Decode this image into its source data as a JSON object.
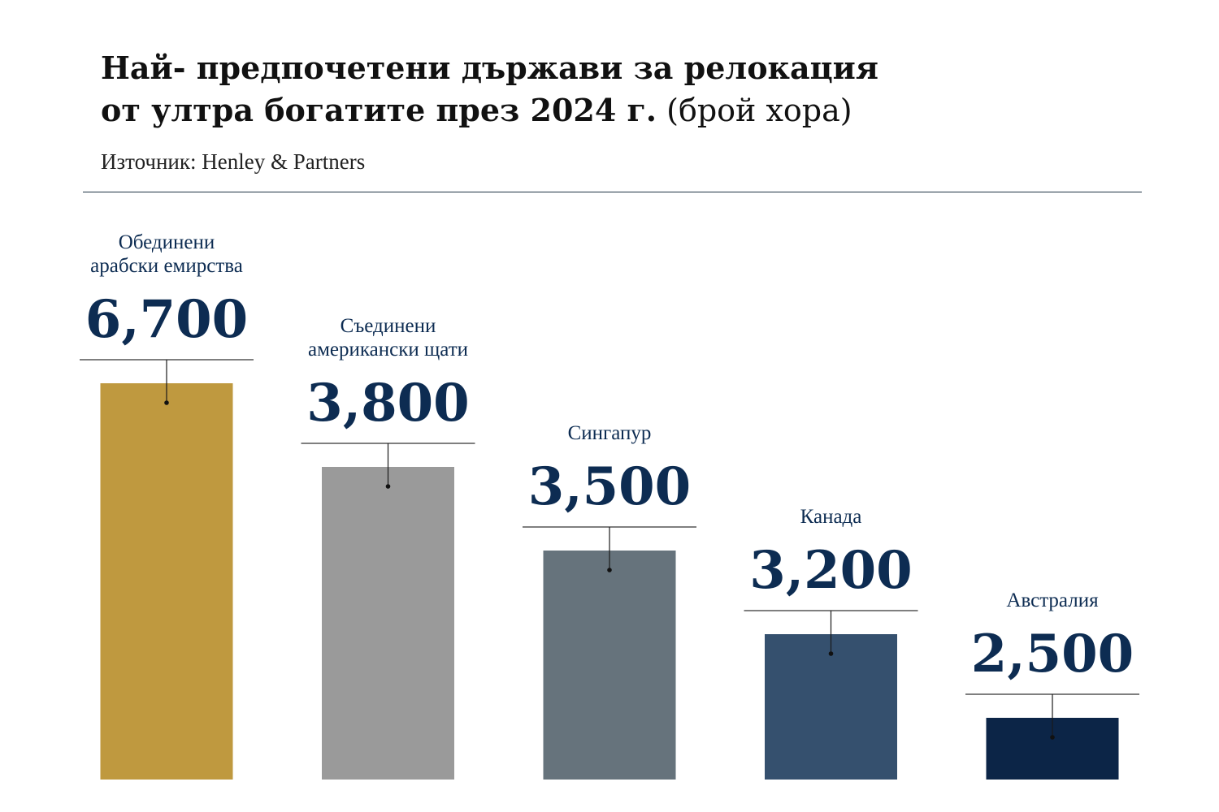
{
  "header": {
    "title_line1": "Най- предпочетени държави за релокация",
    "title_line2_bold": "от ултра богатите през 2024 г.",
    "title_line2_normal": " (брой хора)",
    "source": "Източник: Henley & Partners"
  },
  "chart_data": {
    "type": "bar",
    "categories": [
      [
        "Обединени",
        "арабски емирства"
      ],
      [
        "Съединени",
        "американски щати"
      ],
      [
        "Сингапур"
      ],
      [
        "Канада"
      ],
      [
        "Австралия"
      ]
    ],
    "values": [
      6700,
      3800,
      3500,
      3200,
      2500
    ],
    "value_labels": [
      "6,700",
      "3,800",
      "3,500",
      "3,200",
      "2,500"
    ],
    "colors": [
      "#bf993f",
      "#9a9a9a",
      "#66737c",
      "#35506e",
      "#0c2547"
    ],
    "label_color": "#0d2c52",
    "grid": false,
    "legend": "none"
  }
}
